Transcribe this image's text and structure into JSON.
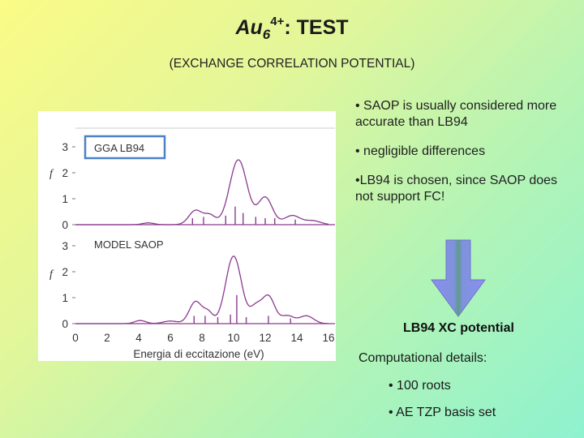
{
  "slide": {
    "title_base": "Au",
    "title_subscript": "6",
    "title_superscript": "4+",
    "title_rest": ": TEST",
    "subtitle": "(EXCHANGE CORRELATION POTENTIAL)"
  },
  "bullets": [
    "• SAOP is usually considered more accurate than LB94",
    "• negligible differences",
    "•LB94 is chosen, since SAOP does not support FC!"
  ],
  "conclusion": "LB94 XC potential",
  "computational": {
    "title": "Computational details:",
    "items": [
      "• 100 roots",
      "• AE TZP basis set"
    ]
  },
  "colors": {
    "curve": "#8a3a8f",
    "label_box": "#4a82c8",
    "arrow_fill": "#8890ee",
    "arrow_core": "#5e9b8b"
  },
  "chart_data": [
    {
      "type": "line",
      "label": "GGA LB94",
      "xlabel": "",
      "ylabel": "f",
      "yticks": [
        "0",
        "1",
        "2",
        "3"
      ],
      "ylim": [
        0,
        3
      ],
      "xlim": [
        0,
        16
      ]
    },
    {
      "type": "line",
      "label": "MODEL SAOP",
      "xlabel": "Energia di eccitazione (eV)",
      "ylabel": "f",
      "xticks": [
        "0",
        "2",
        "4",
        "6",
        "8",
        "10",
        "12",
        "14",
        "16"
      ],
      "yticks": [
        "0",
        "1",
        "2",
        "3"
      ],
      "ylim": [
        0,
        3
      ],
      "xlim": [
        0,
        16
      ]
    }
  ]
}
